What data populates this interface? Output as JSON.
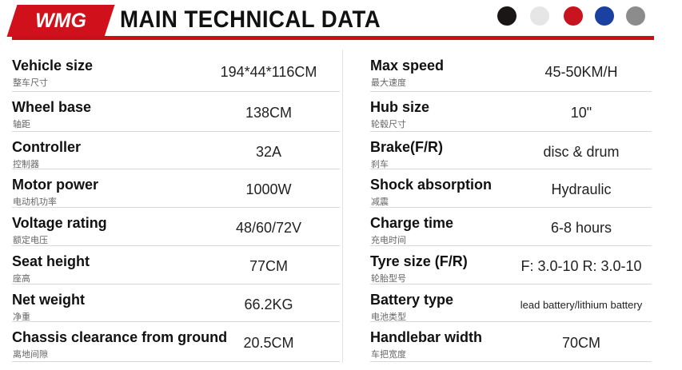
{
  "header": {
    "brand": "WMG",
    "title": "MAIN TECHNICAL DATA"
  },
  "table": {
    "rows": [
      [
        {
          "label": "Vehicle size",
          "sub": "整车尺寸",
          "value": "194*44*116CM"
        },
        {
          "label": "Max speed",
          "sub": "最大速度",
          "value": "45-50KM/H"
        }
      ],
      [
        {
          "label": "Wheel base",
          "sub": "轴距",
          "value": "138CM"
        },
        {
          "label": "Hub size",
          "sub": "轮毂尺寸",
          "value": "10\""
        }
      ],
      [
        {
          "label": "Controller",
          "sub": "控制器",
          "value": "32A"
        },
        {
          "label": "Brake(F/R)",
          "sub": "刹车",
          "value": "disc & drum"
        }
      ],
      [
        {
          "label": "Motor power",
          "sub": "电动机功率",
          "value": "1000W"
        },
        {
          "label": "Shock absorption",
          "sub": "减震",
          "value": "Hydraulic"
        }
      ],
      [
        {
          "label": "Voltage rating",
          "sub": "额定电压",
          "value": "48/60/72V"
        },
        {
          "label": "Charge time",
          "sub": "充电时间",
          "value": "6-8 hours"
        }
      ],
      [
        {
          "label": "Seat height",
          "sub": "座高",
          "value": "77CM"
        },
        {
          "label": "Tyre size (F/R)",
          "sub": "轮胎型号",
          "value": "F: 3.0-10 R: 3.0-10"
        }
      ],
      [
        {
          "label": "Net weight",
          "sub": "净重",
          "value": "66.2KG"
        },
        {
          "label": "Battery type",
          "sub": "电池类型",
          "value": "lead battery/lithium battery"
        }
      ],
      [
        {
          "label": "Chassis clearance from ground",
          "sub": "离地间隙",
          "value": "20.5CM"
        },
        {
          "label": "Handlebar width",
          "sub": "车把宽度",
          "value": "70CM"
        }
      ]
    ]
  }
}
